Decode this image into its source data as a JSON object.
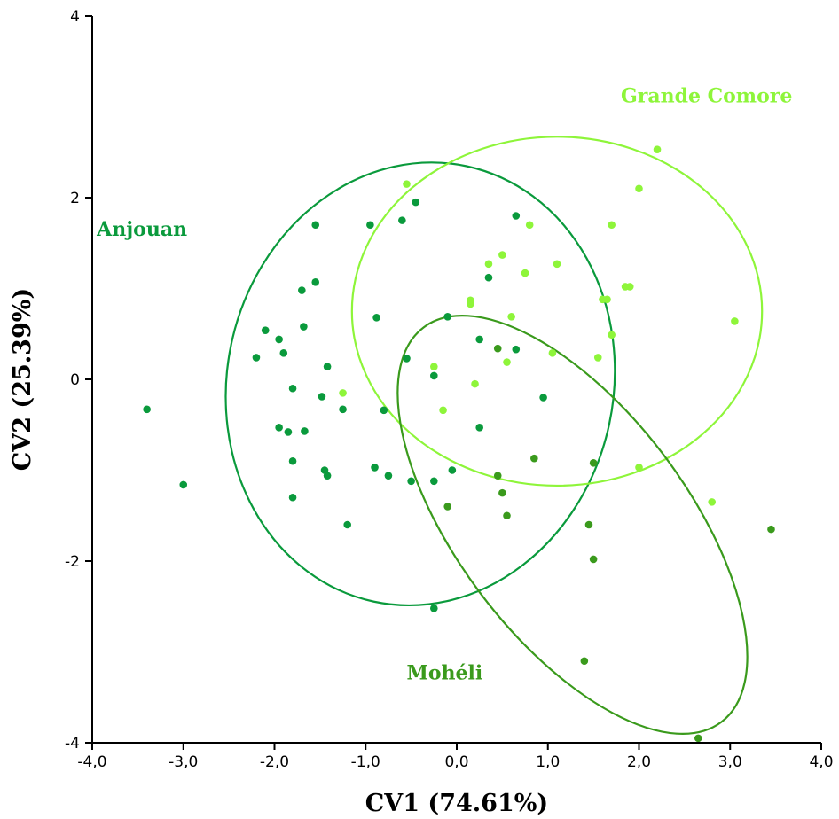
{
  "chart_data": {
    "type": "scatter",
    "xlabel": "CV1 (74.61%)",
    "ylabel": "CV2 (25.39%)",
    "xlim": [
      -4,
      4
    ],
    "ylim": [
      -4,
      4
    ],
    "x_ticks": [
      "-4,0",
      "-3,0",
      "-2,0",
      "-1,0",
      "0,0",
      "1,0",
      "2,0",
      "3,0",
      "4,0"
    ],
    "y_ticks": [
      "4",
      "2",
      "0",
      "-2",
      "-4"
    ],
    "grid": false,
    "series": [
      {
        "name": "Anjouan",
        "color": "#0a9a3c",
        "ellipse": {
          "center": [
            -0.4,
            -0.05
          ],
          "rx_units": 2.12,
          "ry_units": 2.45,
          "rotation_deg": 12
        },
        "points": [
          [
            -3.4,
            -0.33
          ],
          [
            -3.0,
            -1.16
          ],
          [
            -2.2,
            0.24
          ],
          [
            -2.1,
            0.54
          ],
          [
            -1.95,
            0.44
          ],
          [
            -1.9,
            0.29
          ],
          [
            -1.95,
            -0.53
          ],
          [
            -1.85,
            -0.58
          ],
          [
            -1.8,
            -0.9
          ],
          [
            -1.8,
            -1.3
          ],
          [
            -1.8,
            -0.1
          ],
          [
            -1.7,
            0.98
          ],
          [
            -1.68,
            0.58
          ],
          [
            -1.67,
            -0.57
          ],
          [
            -1.55,
            1.07
          ],
          [
            -1.55,
            1.7
          ],
          [
            -1.48,
            -0.19
          ],
          [
            -1.45,
            -1.0
          ],
          [
            -1.42,
            -1.06
          ],
          [
            -1.42,
            0.14
          ],
          [
            -1.25,
            -0.33
          ],
          [
            -1.2,
            -1.6
          ],
          [
            -0.95,
            1.7
          ],
          [
            -0.9,
            -0.97
          ],
          [
            -0.88,
            0.68
          ],
          [
            -0.8,
            -0.34
          ],
          [
            -0.75,
            -1.06
          ],
          [
            -0.6,
            1.75
          ],
          [
            -0.55,
            0.23
          ],
          [
            -0.5,
            -1.12
          ],
          [
            -0.45,
            1.95
          ],
          [
            -0.25,
            0.04
          ],
          [
            -0.25,
            -1.12
          ],
          [
            -0.05,
            -1.0
          ],
          [
            -0.1,
            0.69
          ],
          [
            0.25,
            -0.53
          ],
          [
            0.25,
            0.44
          ],
          [
            0.35,
            1.12
          ],
          [
            0.65,
            0.33
          ],
          [
            0.65,
            1.8
          ],
          [
            0.95,
            -0.2
          ],
          [
            -0.25,
            -2.52
          ]
        ]
      },
      {
        "name": "Grande Comore",
        "color": "#8ef53a",
        "ellipse": {
          "center": [
            1.1,
            0.75
          ],
          "rx_units": 2.25,
          "ry_units": 1.92,
          "rotation_deg": 0
        },
        "points": [
          [
            -1.25,
            -0.15
          ],
          [
            -0.55,
            2.15
          ],
          [
            -0.25,
            0.14
          ],
          [
            -0.15,
            -0.34
          ],
          [
            0.15,
            0.83
          ],
          [
            0.15,
            0.87
          ],
          [
            0.2,
            -0.05
          ],
          [
            0.35,
            1.27
          ],
          [
            0.5,
            1.37
          ],
          [
            0.55,
            0.19
          ],
          [
            0.6,
            0.69
          ],
          [
            0.75,
            1.17
          ],
          [
            0.8,
            1.7
          ],
          [
            1.05,
            0.29
          ],
          [
            1.1,
            1.27
          ],
          [
            1.55,
            0.24
          ],
          [
            1.6,
            0.88
          ],
          [
            1.65,
            0.88
          ],
          [
            1.7,
            1.7
          ],
          [
            1.7,
            0.49
          ],
          [
            1.85,
            1.02
          ],
          [
            1.9,
            1.02
          ],
          [
            2.0,
            2.1
          ],
          [
            2.0,
            -0.97
          ],
          [
            2.2,
            2.53
          ],
          [
            2.8,
            -1.35
          ],
          [
            3.05,
            0.64
          ]
        ]
      },
      {
        "name": "Mohéli",
        "color": "#3a9a1c",
        "ellipse": {
          "center": [
            1.27,
            -1.6
          ],
          "rx_units": 1.26,
          "ry_units": 2.72,
          "rotation_deg": -37
        },
        "points": [
          [
            -0.1,
            -1.4
          ],
          [
            0.45,
            0.34
          ],
          [
            0.45,
            -1.06
          ],
          [
            0.5,
            -1.25
          ],
          [
            0.55,
            -1.5
          ],
          [
            0.85,
            -0.87
          ],
          [
            1.4,
            -3.1
          ],
          [
            1.45,
            -1.6
          ],
          [
            1.5,
            -0.92
          ],
          [
            1.5,
            -1.98
          ],
          [
            2.65,
            -3.95
          ],
          [
            3.45,
            -1.65
          ]
        ]
      }
    ],
    "annotations": [
      {
        "text": "Anjouan",
        "series": "Anjouan",
        "x": -3.95,
        "y": 1.58
      },
      {
        "text": "Grande Comore",
        "series": "Grande Comore",
        "x": 1.8,
        "y": 3.05
      },
      {
        "text": "Mohéli",
        "series": "Mohéli",
        "x": -0.55,
        "y": -3.3
      }
    ]
  }
}
